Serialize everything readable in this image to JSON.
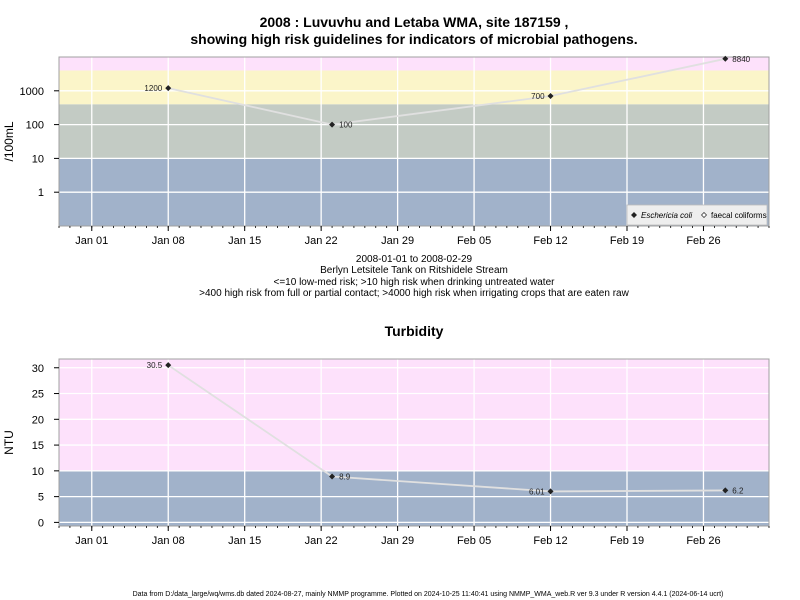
{
  "title_line1": "2008 : Luvuvhu and Letaba WMA, site 187159 ,",
  "title_line2": "showing high risk guidelines for indicators of microbial pathogens.",
  "caption_lines": [
    "2008-01-01 to 2008-02-29",
    "Berlyn Letsitele Tank on Ritshidele Stream",
    "<=10 low-med risk; >10 high risk when drinking untreated water",
    ">400 high risk from full or partial contact; >4000 high risk when irrigating crops that are eaten raw"
  ],
  "footer": "Data from D:/data_large/wq/wms.db dated 2024-08-27, mainly NMMP programme. Plotted on 2024-10-25 11:40:41 using NMMP_WMA_web.R ver 9.3 under R version 4.4.1 (2024-06-14 ucrt)",
  "colors": {
    "band_low": "#a1b2ca",
    "band_mid": "#c3cbc4",
    "band_yellow": "#fbf5c9",
    "band_pink": "#fde1fb",
    "line": "#e0e0e0",
    "marker": "#222222",
    "grid": "#ffffff"
  },
  "chart_data": [
    {
      "type": "line",
      "title": "",
      "xlabel": "",
      "ylabel": "/100mL",
      "yscale": "log",
      "x_tick_labels": [
        "Jan 01",
        "Jan 08",
        "Jan 15",
        "Jan 22",
        "Jan 29",
        "Feb 05",
        "Feb 12",
        "Feb 19",
        "Feb 26"
      ],
      "x_ticks": [
        "2008-01-01",
        "2008-01-08",
        "2008-01-15",
        "2008-01-22",
        "2008-01-29",
        "2008-02-05",
        "2008-02-12",
        "2008-02-19",
        "2008-02-26"
      ],
      "xlim": [
        "2007-12-29",
        "2008-03-03"
      ],
      "y_tick_labels": [
        "1",
        "10",
        "100",
        "1000"
      ],
      "y_ticks": [
        1,
        10,
        100,
        1000
      ],
      "ylim": [
        0.1,
        10000
      ],
      "bands": [
        {
          "from": 0.1,
          "to": 10,
          "color": "#a1b2ca"
        },
        {
          "from": 10,
          "to": 400,
          "color": "#c3cbc4"
        },
        {
          "from": 400,
          "to": 4000,
          "color": "#fbf5c9"
        },
        {
          "from": 4000,
          "to": 10000,
          "color": "#fde1fb"
        }
      ],
      "series": [
        {
          "name": "Eschericia coli",
          "x": [
            "2008-01-08",
            "2008-01-23",
            "2008-02-12",
            "2008-02-28"
          ],
          "values": [
            1200,
            100,
            700,
            8840
          ],
          "labels": [
            "1200",
            "100",
            "700",
            "8840"
          ],
          "label_side": [
            "left",
            "right",
            "left",
            "right"
          ]
        }
      ],
      "legend": {
        "position": "bottom-right",
        "entries": [
          {
            "name": "Eschericia coli",
            "italic": true,
            "marker": "filled-diamond"
          },
          {
            "name": "faecal coliforms",
            "italic": false,
            "marker": "open-diamond"
          }
        ]
      },
      "grid": true
    },
    {
      "type": "line",
      "title": "Turbidity",
      "xlabel": "",
      "ylabel": "NTU",
      "yscale": "linear",
      "x_tick_labels": [
        "Jan 01",
        "Jan 08",
        "Jan 15",
        "Jan 22",
        "Jan 29",
        "Feb 05",
        "Feb 12",
        "Feb 19",
        "Feb 26"
      ],
      "x_ticks": [
        "2008-01-01",
        "2008-01-08",
        "2008-01-15",
        "2008-01-22",
        "2008-01-29",
        "2008-02-05",
        "2008-02-12",
        "2008-02-19",
        "2008-02-26"
      ],
      "xlim": [
        "2007-12-29",
        "2008-03-03"
      ],
      "y_tick_labels": [
        "0",
        "5",
        "10",
        "15",
        "20",
        "25",
        "30"
      ],
      "y_ticks": [
        0,
        5,
        10,
        15,
        20,
        25,
        30
      ],
      "ylim": [
        -0.7,
        31.7
      ],
      "bands": [
        {
          "from": -0.7,
          "to": 10,
          "color": "#a1b2ca"
        },
        {
          "from": 10,
          "to": 31.7,
          "color": "#fde1fb"
        }
      ],
      "series": [
        {
          "x": [
            "2008-01-08",
            "2008-01-23",
            "2008-02-12",
            "2008-02-28"
          ],
          "values": [
            30.5,
            8.9,
            6.01,
            6.2
          ],
          "labels": [
            "30.5",
            "8.9",
            "6.01",
            "6.2"
          ],
          "label_side": [
            "left",
            "right",
            "left",
            "right"
          ]
        }
      ],
      "grid": true
    }
  ]
}
